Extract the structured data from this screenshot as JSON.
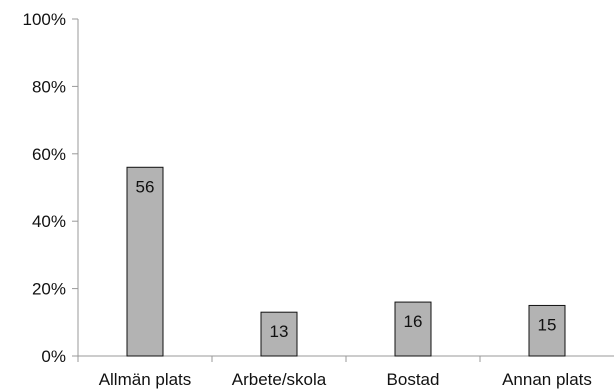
{
  "chart_data": {
    "type": "bar",
    "categories": [
      "Allmän plats",
      "Arbete/skola",
      "Bostad",
      "Annan plats"
    ],
    "values": [
      56,
      13,
      16,
      15
    ],
    "data_labels": [
      "56",
      "13",
      "16",
      "15"
    ],
    "ylim": [
      0,
      100
    ],
    "yticks": [
      0,
      20,
      40,
      60,
      80,
      100
    ],
    "ytick_labels": [
      "0%",
      "20%",
      "40%",
      "60%",
      "80%",
      "100%"
    ],
    "title": "",
    "xlabel": "",
    "ylabel": "",
    "grid": false,
    "colors": {
      "bar_fill": "#b3b3b3",
      "bar_stroke": "#111111",
      "axis": "#999999",
      "text": "#111111"
    }
  }
}
